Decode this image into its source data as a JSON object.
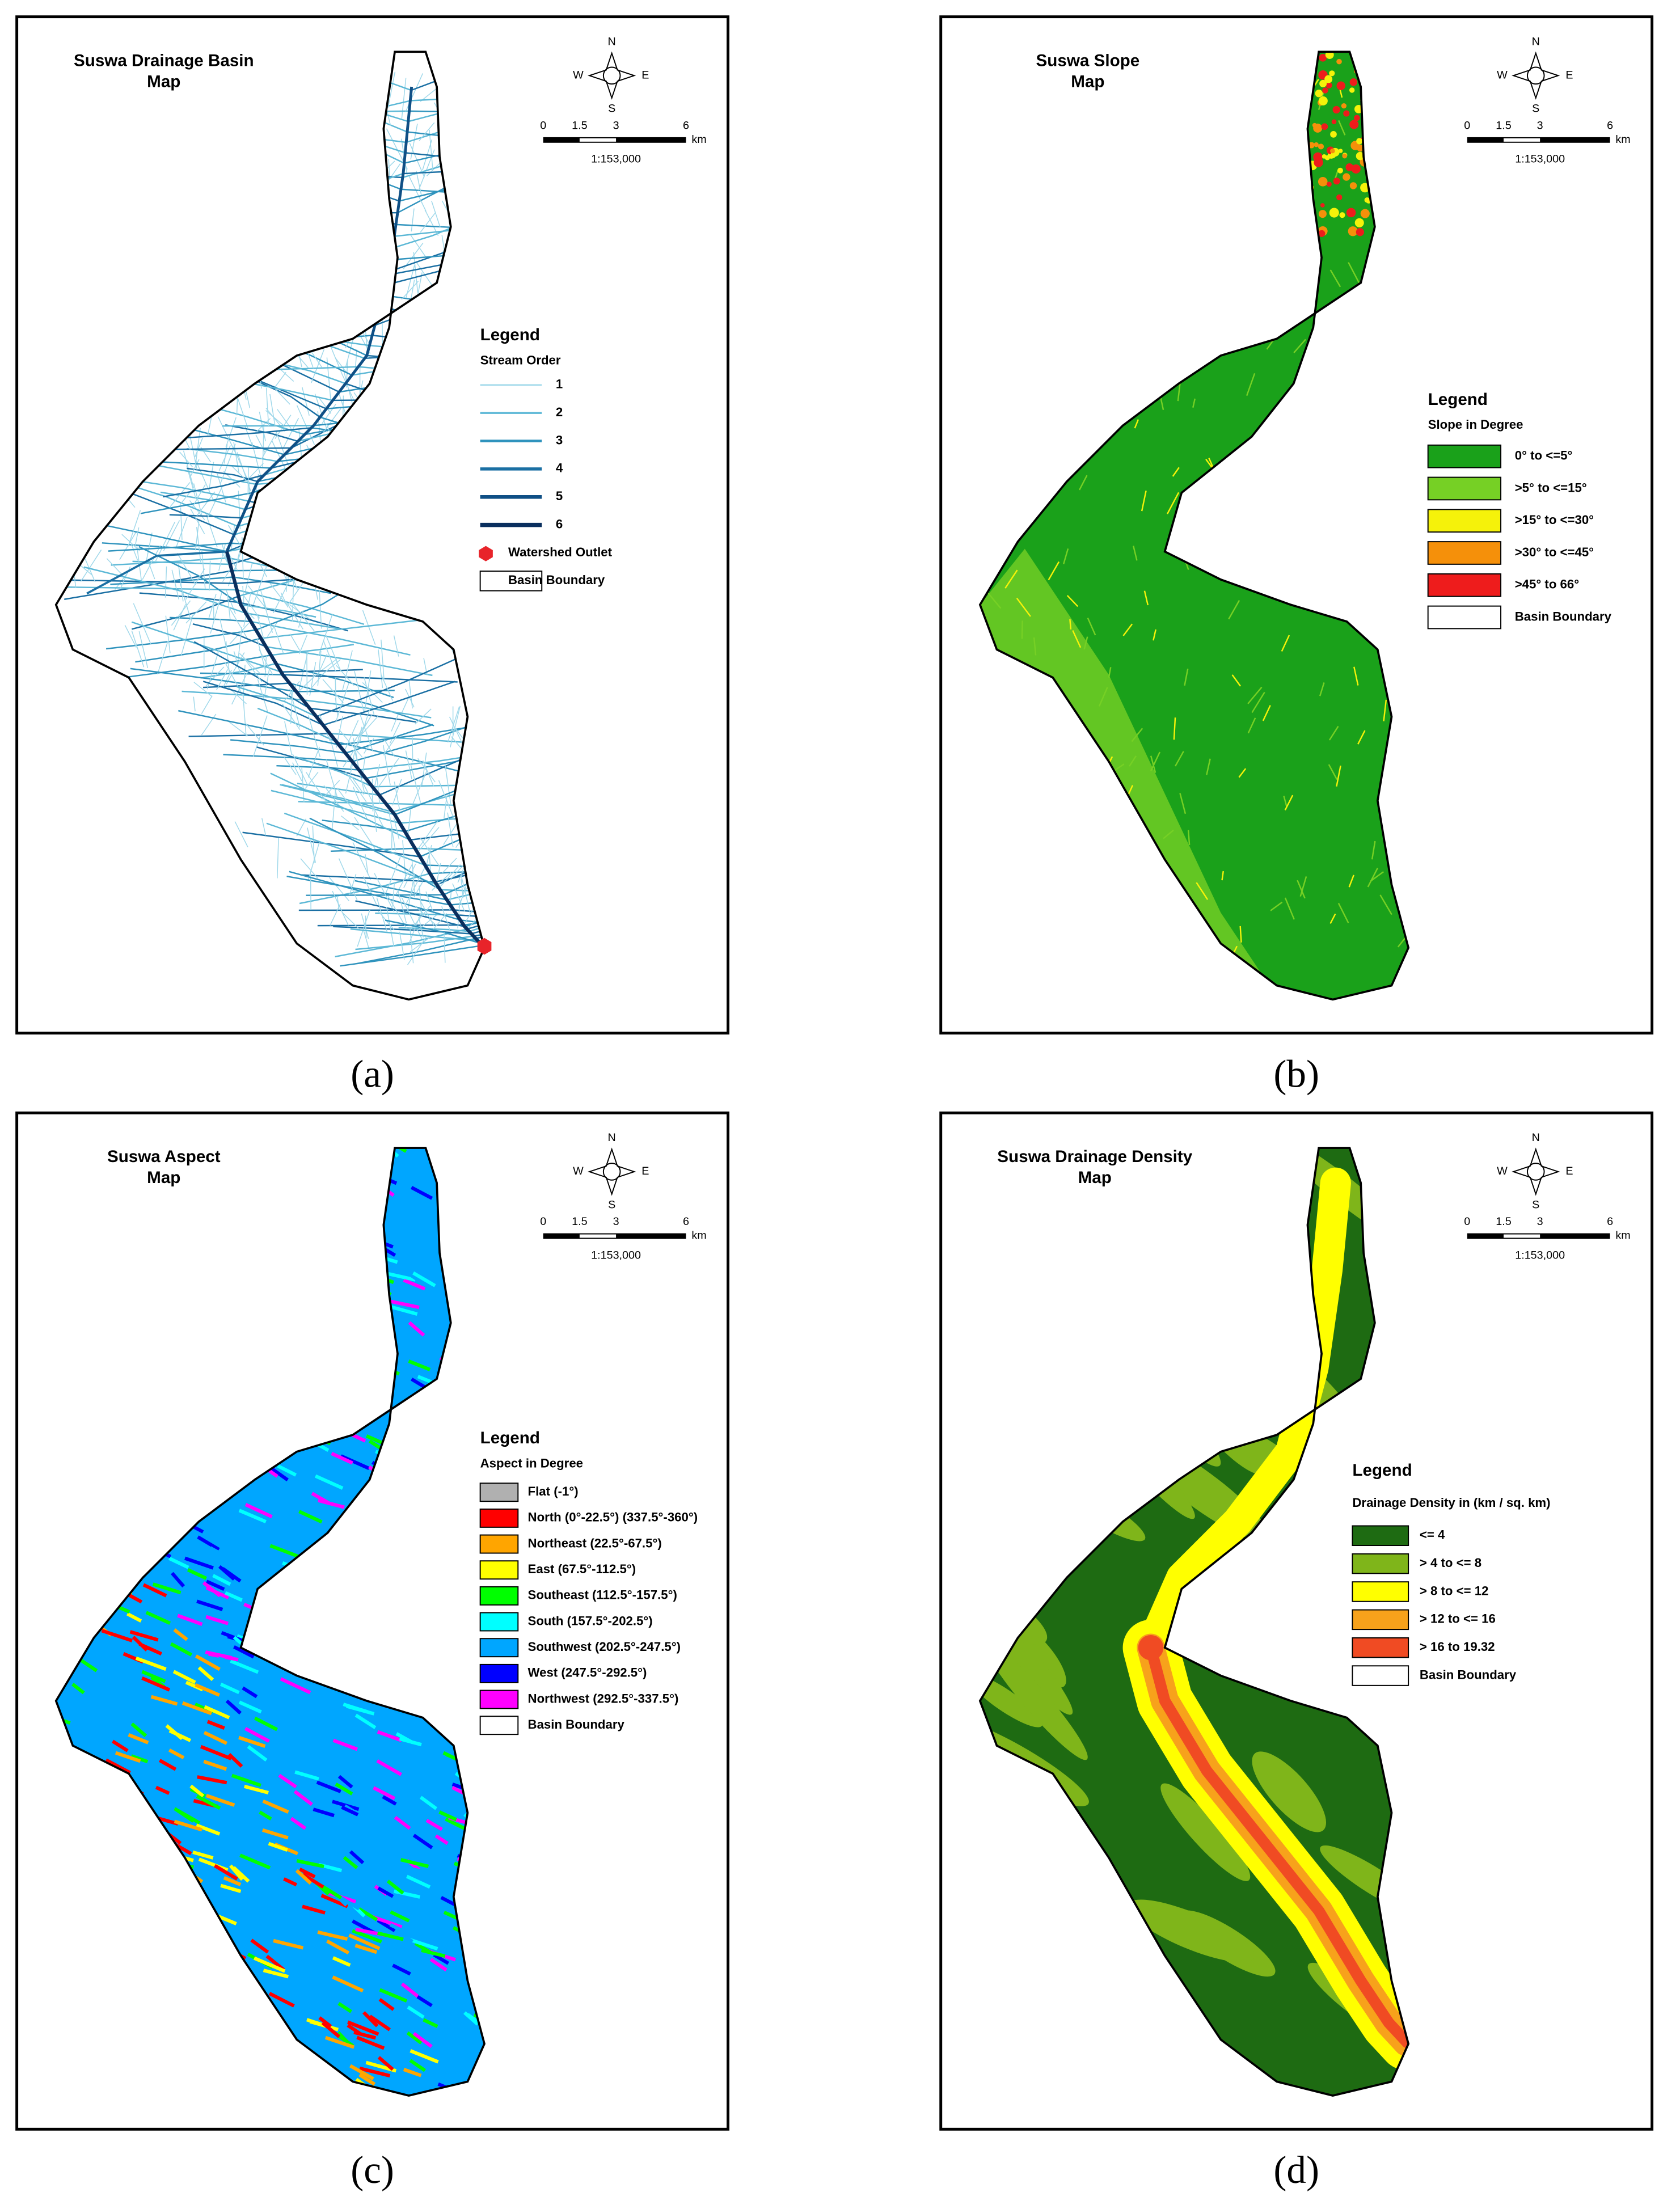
{
  "panels": [
    {
      "caption": "(a)",
      "title": [
        "Suswa Drainage Basin",
        "Map"
      ],
      "compass": [
        "N",
        "E",
        "S",
        "W"
      ],
      "scale_bar": {
        "ticks": [
          "0",
          "1.5",
          "3",
          "6"
        ],
        "unit": "km",
        "ratio": "1:153,000"
      },
      "legend": {
        "title": "Legend",
        "subtitle": "Stream Order",
        "items": [
          {
            "label": "1",
            "color": "#9fd8ea"
          },
          {
            "label": "2",
            "color": "#5cb8d6"
          },
          {
            "label": "3",
            "color": "#2f93bd"
          },
          {
            "label": "4",
            "color": "#1a6fa3"
          },
          {
            "label": "5",
            "color": "#0f4f85"
          },
          {
            "label": "6",
            "color": "#0a2f5e"
          },
          {
            "label": "Watershed Outlet",
            "color": "#e8242a"
          },
          {
            "label": "Basin Boundary",
            "color": "#ffffff"
          }
        ]
      }
    },
    {
      "caption": "(b)",
      "title": [
        "Suswa Slope",
        "Map"
      ],
      "compass": [
        "N",
        "E",
        "S",
        "W"
      ],
      "scale_bar": {
        "ticks": [
          "0",
          "1.5",
          "3",
          "6"
        ],
        "unit": "km",
        "ratio": "1:153,000"
      },
      "legend": {
        "title": "Legend",
        "subtitle": "Slope in Degree",
        "items": [
          {
            "label": "0° to <=5°",
            "color": "#1aa11a"
          },
          {
            "label": ">5° to <=15°",
            "color": "#76d025"
          },
          {
            "label": ">15° to <=30°",
            "color": "#f5f20a"
          },
          {
            "label": ">30° to <=45°",
            "color": "#f5900a"
          },
          {
            "label": ">45° to 66°",
            "color": "#ee1c1c"
          },
          {
            "label": "Basin Boundary",
            "color": "#ffffff"
          }
        ]
      }
    },
    {
      "caption": "(c)",
      "title": [
        "Suswa Aspect",
        "Map"
      ],
      "compass": [
        "N",
        "E",
        "S",
        "W"
      ],
      "scale_bar": {
        "ticks": [
          "0",
          "1.5",
          "3",
          "6"
        ],
        "unit": "km",
        "ratio": "1:153,000"
      },
      "legend": {
        "title": "Legend",
        "subtitle": "Aspect in Degree",
        "items": [
          {
            "label": "Flat (-1°)",
            "color": "#b0b0b0"
          },
          {
            "label": "North (0°-22.5°) (337.5°-360°)",
            "color": "#ff0000"
          },
          {
            "label": "Northeast (22.5°-67.5°)",
            "color": "#ffa500"
          },
          {
            "label": "East (67.5°-112.5°)",
            "color": "#ffff00"
          },
          {
            "label": "Southeast (112.5°-157.5°)",
            "color": "#00ff00"
          },
          {
            "label": "South (157.5°-202.5°)",
            "color": "#00ffff"
          },
          {
            "label": "Southwest (202.5°-247.5°)",
            "color": "#00a6ff"
          },
          {
            "label": "West (247.5°-292.5°)",
            "color": "#0000ff"
          },
          {
            "label": "Northwest (292.5°-337.5°)",
            "color": "#ff00ff"
          },
          {
            "label": "Basin Boundary",
            "color": "#ffffff"
          }
        ]
      }
    },
    {
      "caption": "(d)",
      "title": [
        "Suswa Drainage Density",
        "Map"
      ],
      "compass": [
        "N",
        "E",
        "S",
        "W"
      ],
      "scale_bar": {
        "ticks": [
          "0",
          "1.5",
          "3",
          "6"
        ],
        "unit": "km",
        "ratio": "1:153,000"
      },
      "legend": {
        "title": "Legend",
        "subtitle": "Drainage Density in (km / sq. km)",
        "items": [
          {
            "label": "<= 4",
            "color": "#1e6b12"
          },
          {
            "label": "> 4 to <= 8",
            "color": "#7fb51a"
          },
          {
            "label": "> 8 to <= 12",
            "color": "#ffff00"
          },
          {
            "label": "> 12 to <= 16",
            "color": "#f7a21b"
          },
          {
            "label": "> 16 to 19.32",
            "color": "#f04b23"
          },
          {
            "label": "Basin Boundary",
            "color": "#ffffff"
          }
        ]
      }
    }
  ]
}
